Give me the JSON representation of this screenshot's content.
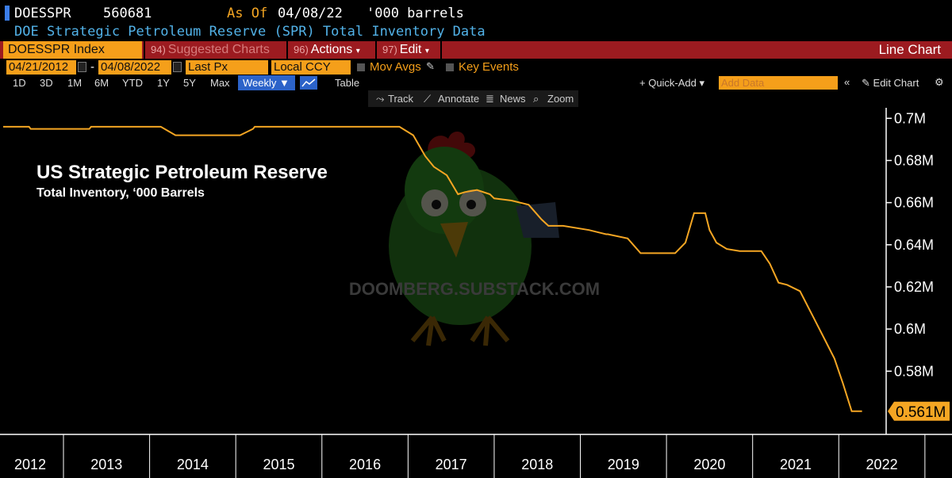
{
  "header": {
    "ticker": "DOESSPR",
    "last_value": "560681",
    "as_of_label": "As Of",
    "as_of_date": "04/08/22",
    "units": "'000 barrels",
    "description": "DOE Strategic Petroleum Reserve (SPR) Total Inventory Data"
  },
  "toolbar": {
    "security": "DOESSPR Index",
    "suggested_num": "94)",
    "suggested_label": "Suggested Charts",
    "actions_num": "96)",
    "actions_label": "Actions",
    "edit_num": "97)",
    "edit_label": "Edit",
    "chart_type": "Line Chart"
  },
  "date_row": {
    "start_date": "04/21/2012",
    "dash": "-",
    "end_date": "04/08/2022",
    "field": "Last Px",
    "currency": "Local CCY",
    "mov_avgs": "Mov Avgs",
    "key_events": "Key Events"
  },
  "periods": [
    "1D",
    "3D",
    "1M",
    "6M",
    "YTD",
    "1Y",
    "5Y",
    "Max"
  ],
  "period_row": {
    "frequency": "Weekly ▼",
    "table": "Table",
    "quick_add": "+ Quick-Add ▾",
    "add_data_placeholder": "Add Data",
    "collapse": "«",
    "edit_chart": "Edit Chart",
    "gear": "⚙"
  },
  "chart_toolbar": {
    "track": "Track",
    "annotate": "Annotate",
    "news": "News",
    "zoom": "Zoom"
  },
  "overlay": {
    "title": "US Strategic Petroleum Reserve",
    "subtitle": "Total Inventory, ‘000 Barrels",
    "watermark": "DOOMBERG.SUBSTACK.COM"
  },
  "colors": {
    "line": "#f5a623",
    "label_bg": "#f5a623",
    "toolbar_red": "#9c1b20",
    "accent_blue": "#2c63c9"
  },
  "chart_data": {
    "type": "line",
    "title": "US Strategic Petroleum Reserve",
    "subtitle": "Total Inventory, ‘000 Barrels",
    "ylim": [
      0.55,
      0.705
    ],
    "xlim": [
      2012.3,
      2022.55
    ],
    "y_ticks": [
      0.58,
      0.6,
      0.62,
      0.64,
      0.66,
      0.68,
      0.7
    ],
    "y_tick_labels": [
      "0.58M",
      "0.6M",
      "0.62M",
      "0.64M",
      "0.66M",
      "0.68M",
      "0.7M"
    ],
    "x_tick_labels": [
      "2012",
      "2013",
      "2014",
      "2015",
      "2016",
      "2017",
      "2018",
      "2019",
      "2020",
      "2021",
      "2022"
    ],
    "last_value_label": "0.561M",
    "grid": false,
    "series": [
      {
        "x": [
          2012.3,
          2012.6,
          2012.62,
          2013.3,
          2013.32,
          2014.13,
          2014.3,
          2014.32,
          2015.05,
          2015.2,
          2015.22,
          2016.9,
          2017.06,
          2017.2,
          2017.3,
          2017.45,
          2017.58,
          2017.66,
          2017.8,
          2017.95,
          2018.0,
          2018.2,
          2018.4,
          2018.55,
          2018.63,
          2018.8,
          2019.1,
          2019.3,
          2019.32,
          2019.55,
          2019.7,
          2019.82,
          2019.92,
          2020.1,
          2020.22,
          2020.32,
          2020.45,
          2020.5,
          2020.58,
          2020.7,
          2020.85,
          2021.1,
          2021.2,
          2021.3,
          2021.4,
          2021.55,
          2021.7,
          2021.85,
          2021.95,
          2022.05,
          2022.15,
          2022.27
        ],
        "y": [
          0.696,
          0.696,
          0.695,
          0.695,
          0.696,
          0.696,
          0.692,
          0.692,
          0.692,
          0.695,
          0.696,
          0.696,
          0.692,
          0.682,
          0.677,
          0.673,
          0.664,
          0.665,
          0.666,
          0.664,
          0.662,
          0.661,
          0.659,
          0.652,
          0.649,
          0.649,
          0.647,
          0.645,
          0.645,
          0.643,
          0.636,
          0.636,
          0.636,
          0.636,
          0.641,
          0.655,
          0.655,
          0.647,
          0.641,
          0.638,
          0.637,
          0.637,
          0.631,
          0.622,
          0.621,
          0.618,
          0.606,
          0.594,
          0.586,
          0.574,
          0.561,
          0.561
        ]
      }
    ]
  }
}
